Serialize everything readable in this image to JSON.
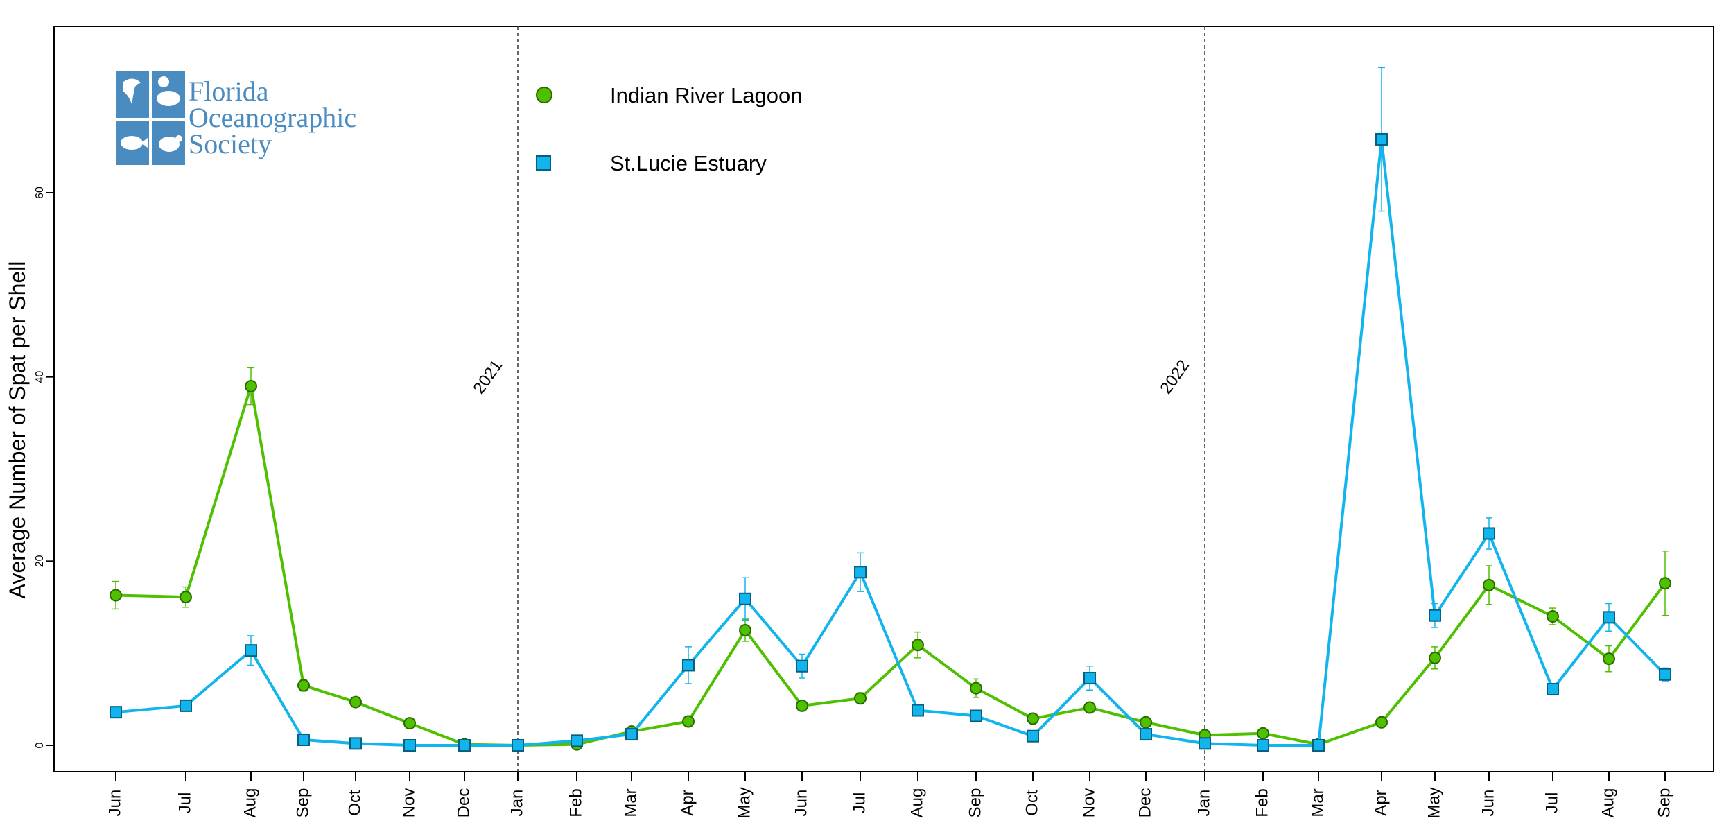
{
  "chart_data": {
    "type": "line",
    "ylabel": "Average Number of Spat per Shell",
    "ylim": [
      -3,
      78
    ],
    "yticks": [
      0,
      20,
      40,
      60
    ],
    "categories": [
      "Jun",
      "Jul",
      "Aug",
      "Sep",
      "Oct",
      "Nov",
      "Dec",
      "Jan",
      "Feb",
      "Mar",
      "Apr",
      "May",
      "Jun",
      "Jul",
      "Aug",
      "Sep",
      "Oct",
      "Nov",
      "Dec",
      "Jan",
      "Feb",
      "Mar",
      "Apr",
      "May",
      "Jun",
      "Jul",
      "Aug",
      "Sep"
    ],
    "x": [
      1,
      2,
      3,
      4,
      5,
      6,
      7,
      8,
      9,
      10,
      11,
      12,
      13,
      14,
      15,
      16,
      17,
      18,
      19,
      20,
      21,
      22,
      23,
      24,
      25,
      26,
      27,
      28
    ],
    "grid": false,
    "legend_position": "top-left",
    "year_markers": [
      {
        "label": "2021",
        "before_category": "Jan",
        "index": 7
      },
      {
        "label": "2022",
        "before_category": "Jan",
        "index": 19
      }
    ],
    "series": [
      {
        "name": "Indian River Lagoon",
        "color": "#4ec000",
        "marker": "circle",
        "values": [
          16.3,
          16.1,
          39,
          6.5,
          4.7,
          2.4,
          0.1,
          0,
          0.1,
          1.5,
          2.6,
          12.5,
          4.3,
          5.1,
          10.9,
          6.2,
          2.9,
          4.1,
          2.5,
          1.1,
          1.3,
          0.1,
          2.5,
          9.5,
          17.4,
          14,
          9.4,
          17.6
        ],
        "err": [
          1.5,
          1.1,
          2.0,
          0.6,
          0.4,
          0.3,
          0.1,
          0.1,
          0.2,
          0.3,
          0.4,
          1.2,
          0.4,
          0.6,
          1.4,
          1.0,
          0.4,
          0.5,
          0.4,
          0.3,
          0.3,
          0.1,
          0.4,
          1.2,
          2.1,
          0.9,
          1.4,
          3.5
        ]
      },
      {
        "name": "St.Lucie Estuary",
        "color": "#12b4ee",
        "marker": "square",
        "values": [
          3.6,
          4.3,
          10.3,
          0.6,
          0.2,
          0,
          0,
          0,
          0.5,
          1.2,
          8.7,
          15.9,
          8.6,
          18.8,
          3.8,
          3.2,
          1,
          7.3,
          1.2,
          0.2,
          0,
          0,
          65.8,
          14.1,
          23,
          6.1,
          13.9,
          7.7
        ],
        "err": [
          0.3,
          0.4,
          1.6,
          0.2,
          0.1,
          0.05,
          0.05,
          0.05,
          0.2,
          0.3,
          2.0,
          2.3,
          1.3,
          2.1,
          0.4,
          0.4,
          0.3,
          1.3,
          0.3,
          0.1,
          0.05,
          0.05,
          7.8,
          1.3,
          1.7,
          0.6,
          1.5,
          0.7
        ]
      }
    ]
  },
  "logo": {
    "line1": "Florida",
    "line2": "Oceanographic",
    "line3": "Society",
    "color": "#4a8bc0"
  }
}
